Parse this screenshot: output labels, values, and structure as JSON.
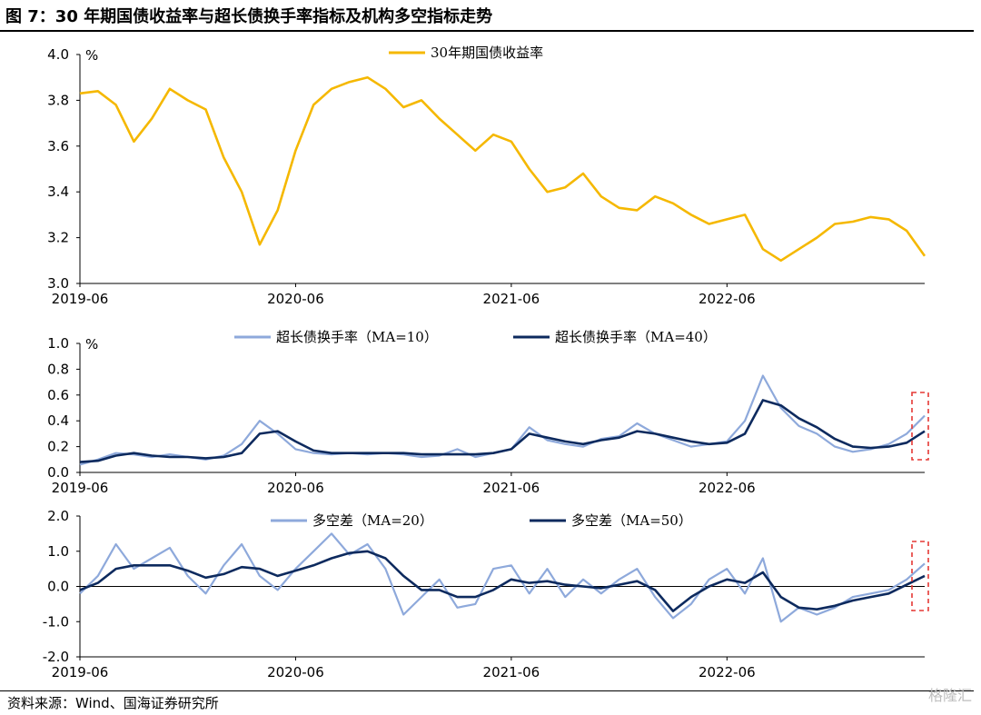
{
  "figure_title": "图 7：30 年期国债收益率与超长债换手率指标及机构多空指标走势",
  "source": "资料来源：Wind、国海证券研究所",
  "watermark": "格隆汇",
  "colors": {
    "gold": "#F5B800",
    "light_blue": "#8EA9DB",
    "navy": "#0D2A5E",
    "highlight": "#E53935"
  },
  "chart_data": [
    {
      "type": "line",
      "ylabel": "%",
      "ylim": [
        3.0,
        4.0
      ],
      "yticks": [
        "4.0",
        "3.8",
        "3.6",
        "3.4",
        "3.2",
        "3.0"
      ],
      "xlim": [
        "2019-06",
        "2023-05"
      ],
      "xticks": [
        "2019-06",
        "2020-06",
        "2021-06",
        "2022-06"
      ],
      "grid": false,
      "legend": "top-center",
      "series": [
        {
          "name": "30年期国债收益率",
          "color": "#F5B800",
          "points": [
            [
              "2019-06",
              3.83
            ],
            [
              "2019-07",
              3.84
            ],
            [
              "2019-08",
              3.78
            ],
            [
              "2019-09",
              3.62
            ],
            [
              "2019-10",
              3.72
            ],
            [
              "2019-11",
              3.85
            ],
            [
              "2019-12",
              3.8
            ],
            [
              "2020-01",
              3.76
            ],
            [
              "2020-02",
              3.55
            ],
            [
              "2020-03",
              3.4
            ],
            [
              "2020-04",
              3.17
            ],
            [
              "2020-05",
              3.32
            ],
            [
              "2020-06",
              3.58
            ],
            [
              "2020-07",
              3.78
            ],
            [
              "2020-08",
              3.85
            ],
            [
              "2020-09",
              3.88
            ],
            [
              "2020-10",
              3.9
            ],
            [
              "2020-11",
              3.85
            ],
            [
              "2020-12",
              3.77
            ],
            [
              "2021-01",
              3.8
            ],
            [
              "2021-02",
              3.72
            ],
            [
              "2021-03",
              3.65
            ],
            [
              "2021-04",
              3.58
            ],
            [
              "2021-05",
              3.65
            ],
            [
              "2021-06",
              3.62
            ],
            [
              "2021-07",
              3.5
            ],
            [
              "2021-08",
              3.4
            ],
            [
              "2021-09",
              3.42
            ],
            [
              "2021-10",
              3.48
            ],
            [
              "2021-11",
              3.38
            ],
            [
              "2021-12",
              3.33
            ],
            [
              "2022-01",
              3.32
            ],
            [
              "2022-02",
              3.38
            ],
            [
              "2022-03",
              3.35
            ],
            [
              "2022-04",
              3.3
            ],
            [
              "2022-05",
              3.26
            ],
            [
              "2022-06",
              3.28
            ],
            [
              "2022-07",
              3.3
            ],
            [
              "2022-08",
              3.15
            ],
            [
              "2022-09",
              3.1
            ],
            [
              "2022-10",
              3.15
            ],
            [
              "2022-11",
              3.2
            ],
            [
              "2022-12",
              3.26
            ],
            [
              "2023-01",
              3.27
            ],
            [
              "2023-02",
              3.29
            ],
            [
              "2023-03",
              3.28
            ],
            [
              "2023-04",
              3.23
            ],
            [
              "2023-05",
              3.12
            ]
          ]
        }
      ]
    },
    {
      "type": "line",
      "ylabel": "%",
      "ylim": [
        0.0,
        1.0
      ],
      "yticks": [
        "1.0",
        "0.8",
        "0.6",
        "0.4",
        "0.2",
        "0.0"
      ],
      "xlim": [
        "2019-06",
        "2023-05"
      ],
      "xticks": [
        "2019-06",
        "2020-06",
        "2021-06",
        "2022-06"
      ],
      "grid": false,
      "legend": "top-center",
      "series": [
        {
          "name": "超长债换手率（MA=10）",
          "color": "#8EA9DB",
          "points": [
            [
              "2019-06",
              0.06
            ],
            [
              "2019-07",
              0.1
            ],
            [
              "2019-08",
              0.15
            ],
            [
              "2019-09",
              0.14
            ],
            [
              "2019-10",
              0.12
            ],
            [
              "2019-11",
              0.14
            ],
            [
              "2019-12",
              0.12
            ],
            [
              "2020-01",
              0.1
            ],
            [
              "2020-02",
              0.13
            ],
            [
              "2020-03",
              0.22
            ],
            [
              "2020-04",
              0.4
            ],
            [
              "2020-05",
              0.3
            ],
            [
              "2020-06",
              0.18
            ],
            [
              "2020-07",
              0.15
            ],
            [
              "2020-08",
              0.14
            ],
            [
              "2020-09",
              0.15
            ],
            [
              "2020-10",
              0.14
            ],
            [
              "2020-11",
              0.15
            ],
            [
              "2020-12",
              0.14
            ],
            [
              "2021-01",
              0.12
            ],
            [
              "2021-02",
              0.13
            ],
            [
              "2021-03",
              0.18
            ],
            [
              "2021-04",
              0.12
            ],
            [
              "2021-05",
              0.15
            ],
            [
              "2021-06",
              0.18
            ],
            [
              "2021-07",
              0.35
            ],
            [
              "2021-08",
              0.25
            ],
            [
              "2021-09",
              0.22
            ],
            [
              "2021-10",
              0.2
            ],
            [
              "2021-11",
              0.26
            ],
            [
              "2021-12",
              0.28
            ],
            [
              "2022-01",
              0.38
            ],
            [
              "2022-02",
              0.3
            ],
            [
              "2022-03",
              0.25
            ],
            [
              "2022-04",
              0.2
            ],
            [
              "2022-05",
              0.22
            ],
            [
              "2022-06",
              0.24
            ],
            [
              "2022-07",
              0.4
            ],
            [
              "2022-08",
              0.75
            ],
            [
              "2022-09",
              0.5
            ],
            [
              "2022-10",
              0.36
            ],
            [
              "2022-11",
              0.3
            ],
            [
              "2022-12",
              0.2
            ],
            [
              "2023-01",
              0.16
            ],
            [
              "2023-02",
              0.18
            ],
            [
              "2023-03",
              0.22
            ],
            [
              "2023-04",
              0.3
            ],
            [
              "2023-05",
              0.44
            ]
          ]
        },
        {
          "name": "超长债换手率（MA=40）",
          "color": "#0D2A5E",
          "points": [
            [
              "2019-06",
              0.08
            ],
            [
              "2019-07",
              0.09
            ],
            [
              "2019-08",
              0.13
            ],
            [
              "2019-09",
              0.15
            ],
            [
              "2019-10",
              0.13
            ],
            [
              "2019-11",
              0.12
            ],
            [
              "2019-12",
              0.12
            ],
            [
              "2020-01",
              0.11
            ],
            [
              "2020-02",
              0.12
            ],
            [
              "2020-03",
              0.15
            ],
            [
              "2020-04",
              0.3
            ],
            [
              "2020-05",
              0.32
            ],
            [
              "2020-06",
              0.24
            ],
            [
              "2020-07",
              0.17
            ],
            [
              "2020-08",
              0.15
            ],
            [
              "2020-09",
              0.15
            ],
            [
              "2020-10",
              0.15
            ],
            [
              "2020-11",
              0.15
            ],
            [
              "2020-12",
              0.15
            ],
            [
              "2021-01",
              0.14
            ],
            [
              "2021-02",
              0.14
            ],
            [
              "2021-03",
              0.14
            ],
            [
              "2021-04",
              0.14
            ],
            [
              "2021-05",
              0.15
            ],
            [
              "2021-06",
              0.18
            ],
            [
              "2021-07",
              0.3
            ],
            [
              "2021-08",
              0.27
            ],
            [
              "2021-09",
              0.24
            ],
            [
              "2021-10",
              0.22
            ],
            [
              "2021-11",
              0.25
            ],
            [
              "2021-12",
              0.27
            ],
            [
              "2022-01",
              0.32
            ],
            [
              "2022-02",
              0.3
            ],
            [
              "2022-03",
              0.27
            ],
            [
              "2022-04",
              0.24
            ],
            [
              "2022-05",
              0.22
            ],
            [
              "2022-06",
              0.23
            ],
            [
              "2022-07",
              0.3
            ],
            [
              "2022-08",
              0.56
            ],
            [
              "2022-09",
              0.52
            ],
            [
              "2022-10",
              0.42
            ],
            [
              "2022-11",
              0.35
            ],
            [
              "2022-12",
              0.26
            ],
            [
              "2023-01",
              0.2
            ],
            [
              "2023-02",
              0.19
            ],
            [
              "2023-03",
              0.2
            ],
            [
              "2023-04",
              0.23
            ],
            [
              "2023-05",
              0.32
            ]
          ]
        }
      ],
      "annotation": "dashed-box-latest"
    },
    {
      "type": "line",
      "ylim": [
        -2.0,
        2.0
      ],
      "yticks": [
        "2.0",
        "1.0",
        "0.0",
        "-1.0",
        "-2.0"
      ],
      "xlim": [
        "2019-06",
        "2023-05"
      ],
      "xticks": [
        "2019-06",
        "2020-06",
        "2021-06",
        "2022-06"
      ],
      "grid": false,
      "zero_line": true,
      "legend": "top-center",
      "series": [
        {
          "name": "多空差（MA=20）",
          "color": "#8EA9DB",
          "points": [
            [
              "2019-06",
              -0.2
            ],
            [
              "2019-07",
              0.3
            ],
            [
              "2019-08",
              1.2
            ],
            [
              "2019-09",
              0.5
            ],
            [
              "2019-10",
              0.8
            ],
            [
              "2019-11",
              1.1
            ],
            [
              "2019-12",
              0.3
            ],
            [
              "2020-01",
              -0.2
            ],
            [
              "2020-02",
              0.6
            ],
            [
              "2020-03",
              1.2
            ],
            [
              "2020-04",
              0.3
            ],
            [
              "2020-05",
              -0.1
            ],
            [
              "2020-06",
              0.5
            ],
            [
              "2020-07",
              1.0
            ],
            [
              "2020-08",
              1.5
            ],
            [
              "2020-09",
              0.9
            ],
            [
              "2020-10",
              1.2
            ],
            [
              "2020-11",
              0.5
            ],
            [
              "2020-12",
              -0.8
            ],
            [
              "2021-01",
              -0.3
            ],
            [
              "2021-02",
              0.2
            ],
            [
              "2021-03",
              -0.6
            ],
            [
              "2021-04",
              -0.5
            ],
            [
              "2021-05",
              0.5
            ],
            [
              "2021-06",
              0.6
            ],
            [
              "2021-07",
              -0.2
            ],
            [
              "2021-08",
              0.5
            ],
            [
              "2021-09",
              -0.3
            ],
            [
              "2021-10",
              0.2
            ],
            [
              "2021-11",
              -0.2
            ],
            [
              "2021-12",
              0.2
            ],
            [
              "2022-01",
              0.5
            ],
            [
              "2022-02",
              -0.3
            ],
            [
              "2022-03",
              -0.9
            ],
            [
              "2022-04",
              -0.5
            ],
            [
              "2022-05",
              0.2
            ],
            [
              "2022-06",
              0.5
            ],
            [
              "2022-07",
              -0.2
            ],
            [
              "2022-08",
              0.8
            ],
            [
              "2022-09",
              -1.0
            ],
            [
              "2022-10",
              -0.6
            ],
            [
              "2022-11",
              -0.8
            ],
            [
              "2022-12",
              -0.6
            ],
            [
              "2023-01",
              -0.3
            ],
            [
              "2023-02",
              -0.2
            ],
            [
              "2023-03",
              -0.1
            ],
            [
              "2023-04",
              0.2
            ],
            [
              "2023-05",
              0.65
            ]
          ]
        },
        {
          "name": "多空差（MA=50）",
          "color": "#0D2A5E",
          "points": [
            [
              "2019-06",
              -0.1
            ],
            [
              "2019-07",
              0.1
            ],
            [
              "2019-08",
              0.5
            ],
            [
              "2019-09",
              0.6
            ],
            [
              "2019-10",
              0.6
            ],
            [
              "2019-11",
              0.6
            ],
            [
              "2019-12",
              0.45
            ],
            [
              "2020-01",
              0.25
            ],
            [
              "2020-02",
              0.35
            ],
            [
              "2020-03",
              0.55
            ],
            [
              "2020-04",
              0.5
            ],
            [
              "2020-05",
              0.3
            ],
            [
              "2020-06",
              0.45
            ],
            [
              "2020-07",
              0.6
            ],
            [
              "2020-08",
              0.8
            ],
            [
              "2020-09",
              0.95
            ],
            [
              "2020-10",
              1.0
            ],
            [
              "2020-11",
              0.8
            ],
            [
              "2020-12",
              0.3
            ],
            [
              "2021-01",
              -0.1
            ],
            [
              "2021-02",
              -0.1
            ],
            [
              "2021-03",
              -0.3
            ],
            [
              "2021-04",
              -0.3
            ],
            [
              "2021-05",
              -0.1
            ],
            [
              "2021-06",
              0.2
            ],
            [
              "2021-07",
              0.1
            ],
            [
              "2021-08",
              0.15
            ],
            [
              "2021-09",
              0.05
            ],
            [
              "2021-10",
              0.0
            ],
            [
              "2021-11",
              -0.05
            ],
            [
              "2021-12",
              0.05
            ],
            [
              "2022-01",
              0.15
            ],
            [
              "2022-02",
              -0.1
            ],
            [
              "2022-03",
              -0.7
            ],
            [
              "2022-04",
              -0.3
            ],
            [
              "2022-05",
              0.0
            ],
            [
              "2022-06",
              0.2
            ],
            [
              "2022-07",
              0.1
            ],
            [
              "2022-08",
              0.4
            ],
            [
              "2022-09",
              -0.3
            ],
            [
              "2022-10",
              -0.6
            ],
            [
              "2022-11",
              -0.65
            ],
            [
              "2022-12",
              -0.55
            ],
            [
              "2023-01",
              -0.4
            ],
            [
              "2023-02",
              -0.3
            ],
            [
              "2023-03",
              -0.2
            ],
            [
              "2023-04",
              0.05
            ],
            [
              "2023-05",
              0.3
            ]
          ]
        }
      ],
      "annotation": "dashed-box-latest"
    }
  ]
}
